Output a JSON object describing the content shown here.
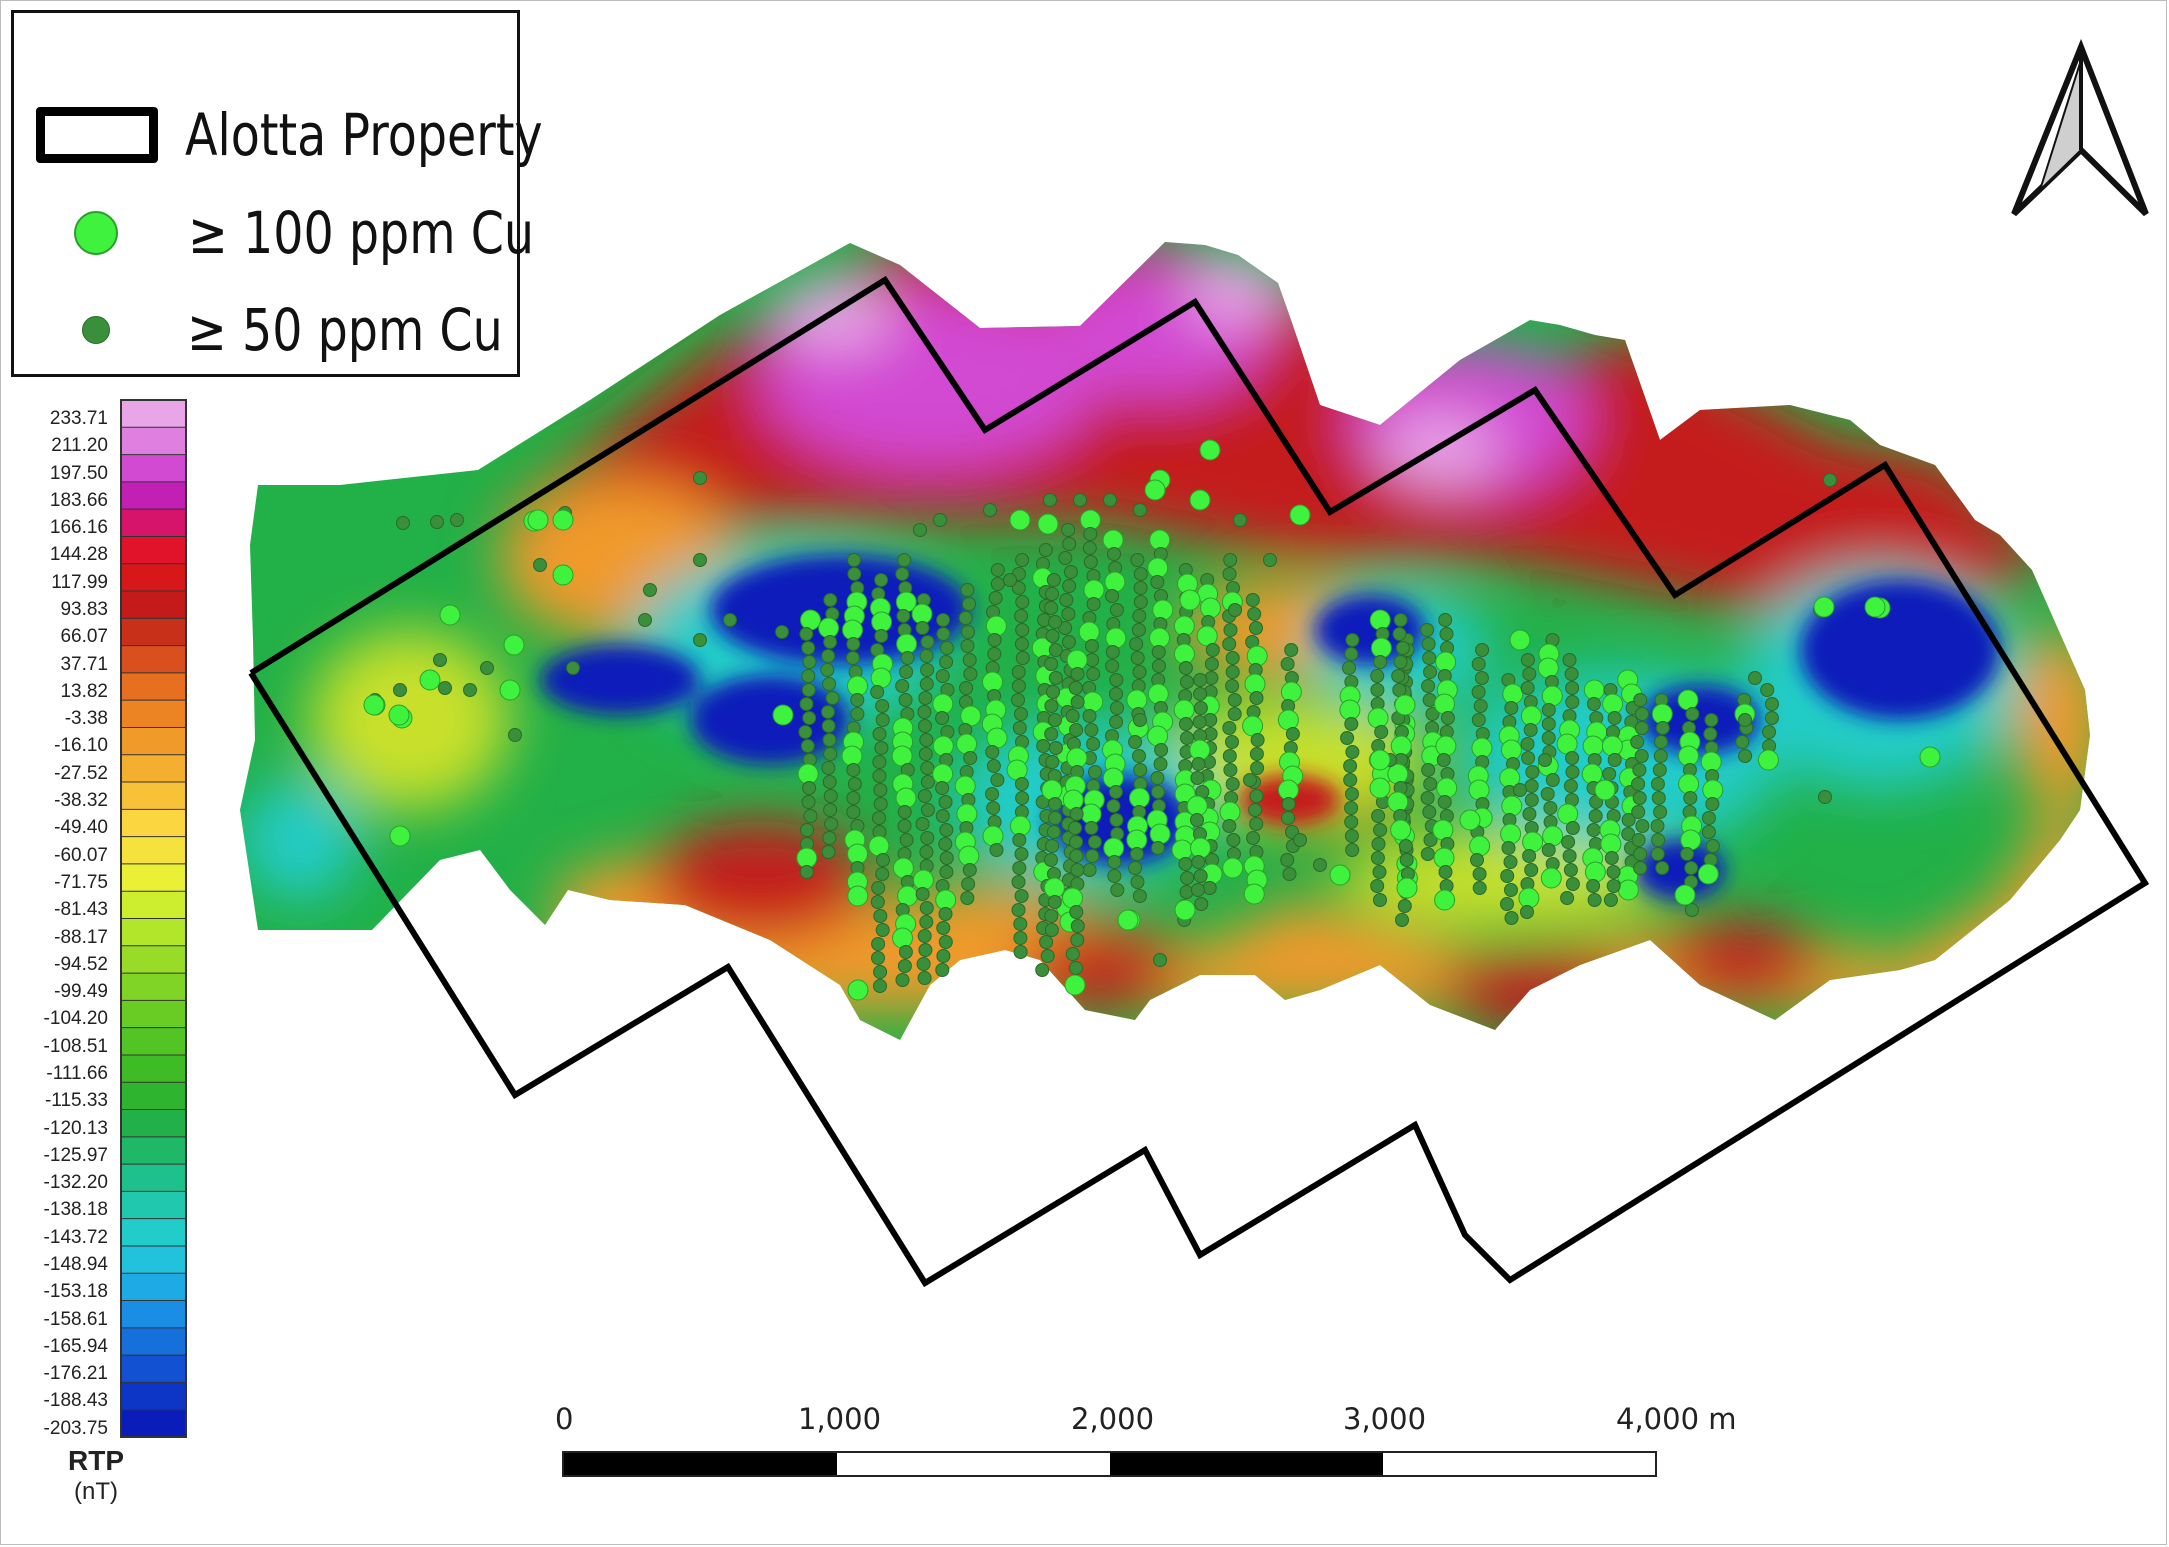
{
  "legend": {
    "items": [
      {
        "symbol": "polygon-outline",
        "label": "Alotta Property",
        "color": "#000000"
      },
      {
        "symbol": "large-circle",
        "label": "≥ 100 ppm Cu",
        "color": "#3ef23e"
      },
      {
        "symbol": "small-circle",
        "label": "≥ 50 ppm Cu",
        "color": "#3a8f3a"
      }
    ]
  },
  "colorbar": {
    "title": "RTP",
    "unit": "(nT)",
    "values": [
      "233.71",
      "211.20",
      "197.50",
      "183.66",
      "166.16",
      "144.28",
      "117.99",
      "93.83",
      "66.07",
      "37.71",
      "13.82",
      "-3.38",
      "-16.10",
      "-27.52",
      "-38.32",
      "-49.40",
      "-60.07",
      "-71.75",
      "-81.43",
      "-88.17",
      "-94.52",
      "-99.49",
      "-104.20",
      "-108.51",
      "-111.66",
      "-115.33",
      "-120.13",
      "-125.97",
      "-132.20",
      "-138.18",
      "-143.72",
      "-148.94",
      "-153.18",
      "-158.61",
      "-165.94",
      "-176.21",
      "-188.43",
      "-203.75"
    ],
    "colors": [
      "#e8a6e8",
      "#df7fdf",
      "#d24ad2",
      "#c21fb4",
      "#d6146a",
      "#e0132a",
      "#d81818",
      "#c41a1a",
      "#c8301a",
      "#d9501e",
      "#e6701f",
      "#ec8424",
      "#f09a2a",
      "#f4ae30",
      "#f8c238",
      "#fbd640",
      "#f6e23c",
      "#eaf035",
      "#cdee2e",
      "#b2e62a",
      "#98dc28",
      "#80d426",
      "#68cc24",
      "#52c424",
      "#3ebc26",
      "#2eb42e",
      "#22b048",
      "#1eb868",
      "#1ec08c",
      "#20c8ae",
      "#22ccc8",
      "#22c2dc",
      "#1eaae4",
      "#1a8ee4",
      "#1670dc",
      "#1252d2",
      "#0e36c6",
      "#0a1cba"
    ]
  },
  "north_arrow": {
    "icon": "north-arrow-icon"
  },
  "scale_bar": {
    "labels": [
      "0",
      "1,000",
      "2,000",
      "3,000",
      "4,000 m"
    ]
  },
  "map": {
    "anomaly_colors": {
      "high": "#c41a1a",
      "very_high": "#d24ad2",
      "peak": "#e8a6e8",
      "mid": "#f09a2a",
      "neutral": "#c8e02c",
      "low": "#22b048",
      "very_low": "#22ccc8",
      "minimum": "#0a1cba"
    },
    "property_outline_color": "#000000"
  }
}
